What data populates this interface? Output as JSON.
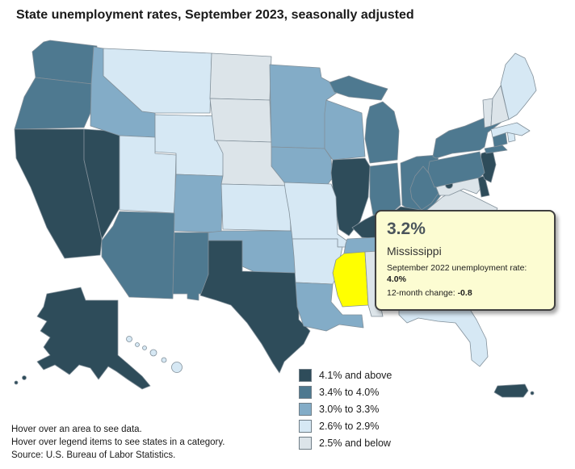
{
  "title": "State unemployment rates, September 2023, seasonally adjusted",
  "legend": {
    "items": [
      {
        "category": "c5",
        "label": "4.1% and above",
        "color": "#2E4C5A"
      },
      {
        "category": "c4",
        "label": "3.4% to 4.0%",
        "color": "#4E7990"
      },
      {
        "category": "c3",
        "label": "3.0% to 3.3%",
        "color": "#83ACC7"
      },
      {
        "category": "c2",
        "label": "2.6% to 2.9%",
        "color": "#D6E8F4"
      },
      {
        "category": "c1",
        "label": "2.5% and below",
        "color": "#DCE4E9"
      }
    ]
  },
  "highlight_color": "#FFFF00",
  "tooltip": {
    "rate": "3.2%",
    "state": "Mississippi",
    "previous_label": "September 2022 unemployment rate: ",
    "previous_value": "4.0%",
    "change_label": "12-month change: ",
    "change_value": "-0.8"
  },
  "footer": {
    "line1": "Hover over an area to see data.",
    "line2": "Hover over legend items to see states in a category.",
    "line3": "Source: U.S. Bureau of Labor Statistics."
  },
  "map": {
    "states": [
      {
        "id": "WA",
        "name": "Washington",
        "category": "c4"
      },
      {
        "id": "OR",
        "name": "Oregon",
        "category": "c4"
      },
      {
        "id": "CA",
        "name": "California",
        "category": "c5"
      },
      {
        "id": "NV",
        "name": "Nevada",
        "category": "c5"
      },
      {
        "id": "ID",
        "name": "Idaho",
        "category": "c3"
      },
      {
        "id": "MT",
        "name": "Montana",
        "category": "c2"
      },
      {
        "id": "WY",
        "name": "Wyoming",
        "category": "c2"
      },
      {
        "id": "UT",
        "name": "Utah",
        "category": "c2"
      },
      {
        "id": "CO",
        "name": "Colorado",
        "category": "c3"
      },
      {
        "id": "AZ",
        "name": "Arizona",
        "category": "c4"
      },
      {
        "id": "NM",
        "name": "New Mexico",
        "category": "c4"
      },
      {
        "id": "ND",
        "name": "North Dakota",
        "category": "c1"
      },
      {
        "id": "SD",
        "name": "South Dakota",
        "category": "c1"
      },
      {
        "id": "NE",
        "name": "Nebraska",
        "category": "c1"
      },
      {
        "id": "KS",
        "name": "Kansas",
        "category": "c2"
      },
      {
        "id": "OK",
        "name": "Oklahoma",
        "category": "c3"
      },
      {
        "id": "TX",
        "name": "Texas",
        "category": "c5"
      },
      {
        "id": "MN",
        "name": "Minnesota",
        "category": "c3"
      },
      {
        "id": "IA",
        "name": "Iowa",
        "category": "c3"
      },
      {
        "id": "WI",
        "name": "Wisconsin",
        "category": "c3"
      },
      {
        "id": "IL",
        "name": "Illinois",
        "category": "c5"
      },
      {
        "id": "MO",
        "name": "Missouri",
        "category": "c2"
      },
      {
        "id": "AR",
        "name": "Arkansas",
        "category": "c2"
      },
      {
        "id": "LA",
        "name": "Louisiana",
        "category": "c3"
      },
      {
        "id": "MI",
        "name": "Michigan",
        "category": "c4"
      },
      {
        "id": "IN",
        "name": "Indiana",
        "category": "c4"
      },
      {
        "id": "OH",
        "name": "Ohio",
        "category": "c4"
      },
      {
        "id": "KY",
        "name": "Kentucky",
        "category": "c5"
      },
      {
        "id": "TN",
        "name": "Tennessee",
        "category": "c3"
      },
      {
        "id": "MS",
        "name": "Mississippi",
        "category": "c3",
        "highlighted": true
      },
      {
        "id": "AL",
        "name": "Alabama",
        "category": "c1"
      },
      {
        "id": "GA",
        "name": "Georgia",
        "category": "c3"
      },
      {
        "id": "FL",
        "name": "Florida",
        "category": "c2"
      },
      {
        "id": "SC",
        "name": "South Carolina",
        "category": "c3"
      },
      {
        "id": "NC",
        "name": "North Carolina",
        "category": "c3"
      },
      {
        "id": "VA",
        "name": "Virginia",
        "category": "c1"
      },
      {
        "id": "WV",
        "name": "West Virginia",
        "category": "c4"
      },
      {
        "id": "MD",
        "name": "Maryland",
        "category": "c1"
      },
      {
        "id": "DE",
        "name": "Delaware",
        "category": "c5"
      },
      {
        "id": "DC",
        "name": "District of Columbia",
        "category": "c5"
      },
      {
        "id": "NJ",
        "name": "New Jersey",
        "category": "c5"
      },
      {
        "id": "PA",
        "name": "Pennsylvania",
        "category": "c4"
      },
      {
        "id": "NY",
        "name": "New York",
        "category": "c4"
      },
      {
        "id": "CT",
        "name": "Connecticut",
        "category": "c4"
      },
      {
        "id": "RI",
        "name": "Rhode Island",
        "category": "c2"
      },
      {
        "id": "MA",
        "name": "Massachusetts",
        "category": "c2"
      },
      {
        "id": "VT",
        "name": "Vermont",
        "category": "c1"
      },
      {
        "id": "NH",
        "name": "New Hampshire",
        "category": "c1"
      },
      {
        "id": "ME",
        "name": "Maine",
        "category": "c2"
      },
      {
        "id": "AK",
        "name": "Alaska",
        "category": "c5"
      },
      {
        "id": "HI",
        "name": "Hawaii",
        "category": "c2"
      },
      {
        "id": "PR",
        "name": "Puerto Rico",
        "category": "c5"
      }
    ]
  }
}
